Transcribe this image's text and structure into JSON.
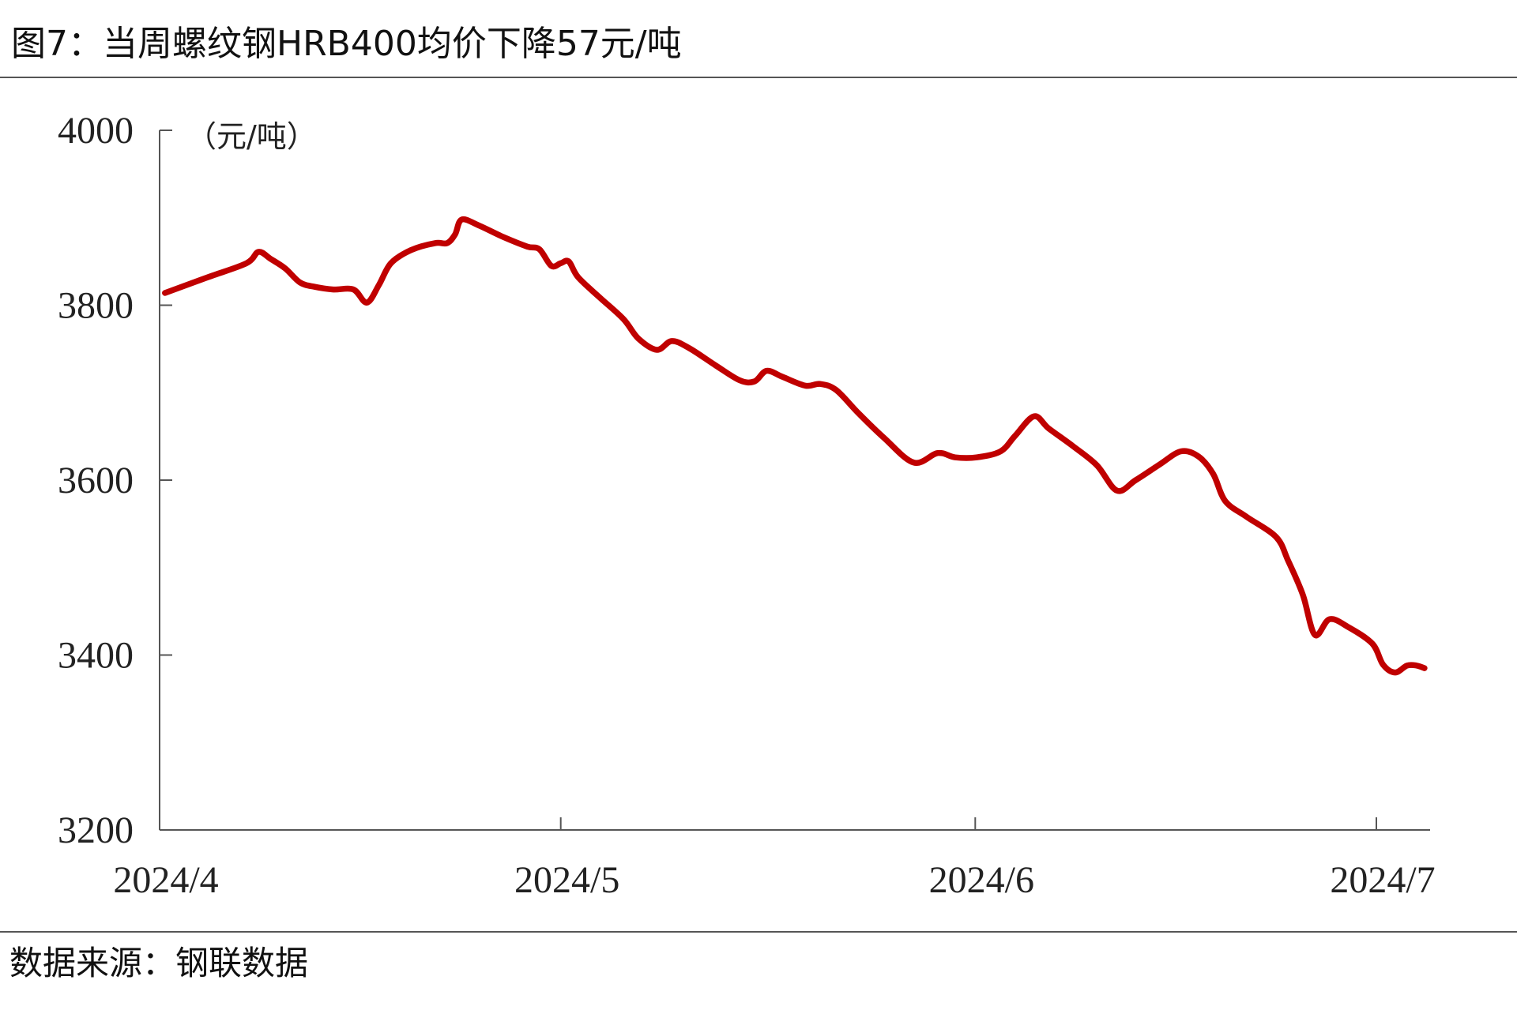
{
  "header": {
    "title": "图7：当周螺纹钢HRB400均价下降57元/吨"
  },
  "footer": {
    "source": "数据来源：钢联数据"
  },
  "colors": {
    "line": "#C00000",
    "axis": "#555555"
  },
  "chart_data": {
    "type": "line",
    "title": "图7：当周螺纹钢HRB400均价下降57元/吨",
    "ylabel": "（元/吨）",
    "xlabel": "",
    "ylim": [
      3200,
      4000
    ],
    "yticks": [
      3200,
      3400,
      3600,
      3800,
      4000
    ],
    "ytick_labels": [
      "3200",
      "3400",
      "3600",
      "3800",
      "4000"
    ],
    "x_unit": "days since 2024-04-01",
    "xlim": [
      0,
      95.5
    ],
    "xticks": [
      0,
      30,
      61,
      91
    ],
    "xtick_labels": [
      "2024/4",
      "2024/5",
      "2024/6",
      "2024/7"
    ],
    "grid": false,
    "legend": "none",
    "series": [
      {
        "name": "HRB400均价",
        "x": [
          0.4,
          3.6,
          6.5,
          7.4,
          8.3,
          9.4,
          10.5,
          11.6,
          13.0,
          14.5,
          15.5,
          16.4,
          17.3,
          18.8,
          20.6,
          21.5,
          22.1,
          22.6,
          23.9,
          25.7,
          27.5,
          28.4,
          29.3,
          30.0,
          30.6,
          31.3,
          32.9,
          34.7,
          35.8,
          37.2,
          38.3,
          39.6,
          41.6,
          43.4,
          44.5,
          45.4,
          46.6,
          48.3,
          49.4,
          50.6,
          52.3,
          54.2,
          56.4,
          58.2,
          59.5,
          61.1,
          62.9,
          64.0,
          65.4,
          66.5,
          68.3,
          70.1,
          71.6,
          73.0,
          74.8,
          76.4,
          77.7,
          78.8,
          79.7,
          81.3,
          83.5,
          84.4,
          85.5,
          86.4,
          87.5,
          88.9,
          90.7,
          91.5,
          92.4,
          93.3,
          94.0,
          94.6
        ],
        "values": [
          3814,
          3832,
          3848,
          3861,
          3853,
          3842,
          3826,
          3821,
          3818,
          3818,
          3803,
          3823,
          3848,
          3863,
          3871,
          3871,
          3881,
          3898,
          3891,
          3878,
          3867,
          3864,
          3845,
          3848,
          3850,
          3832,
          3809,
          3784,
          3762,
          3749,
          3759,
          3751,
          3731,
          3714,
          3713,
          3725,
          3718,
          3708,
          3710,
          3703,
          3676,
          3648,
          3620,
          3631,
          3626,
          3626,
          3633,
          3651,
          3673,
          3659,
          3639,
          3617,
          3588,
          3600,
          3618,
          3633,
          3627,
          3607,
          3576,
          3558,
          3535,
          3508,
          3469,
          3423,
          3441,
          3432,
          3413,
          3389,
          3380,
          3388,
          3388,
          3385
        ]
      }
    ]
  }
}
